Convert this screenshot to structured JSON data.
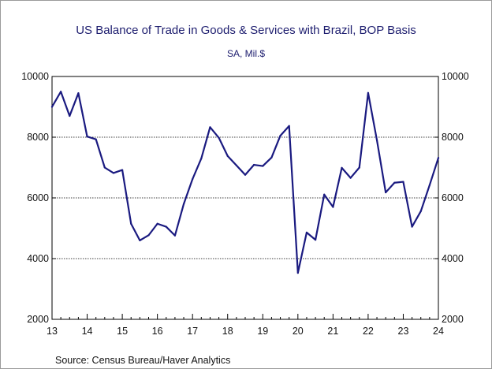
{
  "chart_data": {
    "type": "line",
    "title": "US Balance of Trade in Goods & Services with Brazil, BOP Basis",
    "subtitle": "SA, Mil.$",
    "source": "Source:  Census Bureau/Haver Analytics",
    "xlabel": "",
    "ylabel": "",
    "x_tick_labels": [
      "13",
      "14",
      "15",
      "16",
      "17",
      "18",
      "19",
      "20",
      "21",
      "22",
      "23",
      "24"
    ],
    "x_tick_values": [
      2013,
      2014,
      2015,
      2016,
      2017,
      2018,
      2019,
      2020,
      2021,
      2022,
      2023,
      2024
    ],
    "xlim": [
      2013,
      2024
    ],
    "ylim": [
      2000,
      10000
    ],
    "y_ticks": [
      2000,
      4000,
      6000,
      8000,
      10000
    ],
    "grid": "horizontal dotted at 4000, 6000, 8000",
    "series": [
      {
        "color": "#1a1a80",
        "x": [
          2013.0,
          2013.25,
          2013.5,
          2013.75,
          2014.0,
          2014.25,
          2014.5,
          2014.75,
          2015.0,
          2015.25,
          2015.5,
          2015.75,
          2016.0,
          2016.25,
          2016.5,
          2016.75,
          2017.0,
          2017.25,
          2017.5,
          2017.75,
          2018.0,
          2018.25,
          2018.5,
          2018.75,
          2019.0,
          2019.25,
          2019.5,
          2019.75,
          2020.0,
          2020.25,
          2020.5,
          2020.75,
          2021.0,
          2021.25,
          2021.5,
          2021.75,
          2022.0,
          2022.25,
          2022.5,
          2022.75,
          2023.0,
          2023.25,
          2023.5,
          2023.75,
          2024.0
        ],
        "values": [
          9000,
          9500,
          8700,
          9450,
          8020,
          7930,
          7000,
          6820,
          6920,
          5150,
          4600,
          4770,
          5150,
          5050,
          4760,
          5800,
          6620,
          7300,
          8330,
          7980,
          7380,
          7070,
          6760,
          7090,
          7050,
          7330,
          8050,
          8370,
          3530,
          4860,
          4620,
          6110,
          5700,
          6990,
          6660,
          7000,
          9460,
          7900,
          6180,
          6500,
          6530,
          5050,
          5560,
          6420,
          7320
        ]
      }
    ]
  }
}
